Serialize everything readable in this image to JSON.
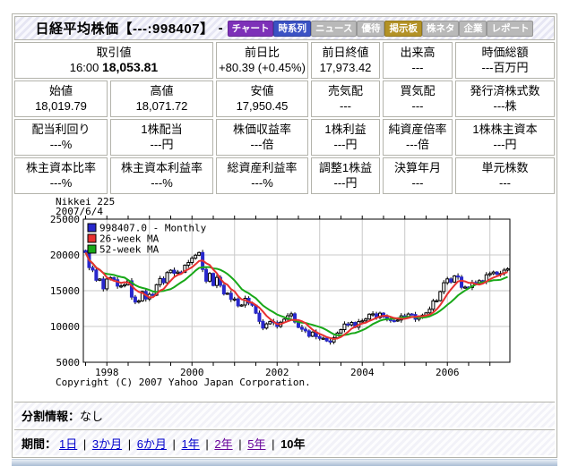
{
  "header": {
    "title": "日経平均株価【---:998407】",
    "title_suffix": "-",
    "buttons": [
      {
        "name": "chart",
        "label": "チャート",
        "color": "#7d31b8"
      },
      {
        "name": "time-series",
        "label": "時系列",
        "color": "#3b52c4"
      },
      {
        "name": "news",
        "label": "ニュース",
        "color": "#b9b9b9"
      },
      {
        "name": "yutai",
        "label": "優待",
        "color": "#b9b9b9"
      },
      {
        "name": "message-board",
        "label": "掲示板",
        "color": "#b39225"
      },
      {
        "name": "kabu-neta",
        "label": "株ネタ",
        "color": "#b9b9b9"
      },
      {
        "name": "company",
        "label": "企業",
        "color": "#b9b9b9"
      },
      {
        "name": "report",
        "label": "レポート",
        "color": "#b9b9b9"
      }
    ]
  },
  "quote": {
    "r1": [
      {
        "label": "取引値",
        "time": "16:00",
        "value": "18,053.81"
      },
      {
        "label": "前日比",
        "value": "+80.39 (+0.45%)"
      },
      {
        "label": "前日終値",
        "value": "17,973.42"
      },
      {
        "label": "出来高",
        "value": "---"
      },
      {
        "label": "時価総額",
        "value": "---百万円"
      }
    ],
    "r2": [
      {
        "label": "始値",
        "value": "18,019.79"
      },
      {
        "label": "高値",
        "value": "18,071.72"
      },
      {
        "label": "安値",
        "value": "17,950.45"
      },
      {
        "label": "売気配",
        "value": "---"
      },
      {
        "label": "買気配",
        "value": "---"
      },
      {
        "label": "発行済株式数",
        "value": "---株"
      }
    ],
    "r3": [
      {
        "label": "配当利回り",
        "value": "---%"
      },
      {
        "label": "1株配当",
        "value": "---円"
      },
      {
        "label": "株価収益率",
        "value": "---倍"
      },
      {
        "label": "1株利益",
        "value": "---円"
      },
      {
        "label": "純資産倍率",
        "value": "---倍"
      },
      {
        "label": "1株株主資本",
        "value": "---円"
      }
    ],
    "r4": [
      {
        "label": "株主資本比率",
        "value": "---%"
      },
      {
        "label": "株主資本利益率",
        "value": "---%"
      },
      {
        "label": "総資産利益率",
        "value": "---%"
      },
      {
        "label": "調整1株益",
        "value": "---円"
      },
      {
        "label": "決算年月",
        "value": "---"
      },
      {
        "label": "単元株数",
        "value": "---"
      }
    ]
  },
  "chart_data": {
    "type": "candlestick",
    "title": "Nikkei 225",
    "date_label": "2007/6/4",
    "copyright": "Copyright (C) 2007 Yahoo Japan Corporation.",
    "ylim": [
      5000,
      25000
    ],
    "yticks": [
      25000,
      20000,
      15000,
      10000,
      5000
    ],
    "xtick_labels": [
      "1998",
      "2000",
      "2002",
      "2004",
      "2006"
    ],
    "xtick_month_index": [
      6,
      30,
      54,
      78,
      102
    ],
    "grid": true,
    "legend_position": "top-left",
    "legend": [
      {
        "label": "998407.0 - Monthly",
        "color": "#2828cc"
      },
      {
        "label": "26-week MA",
        "color": "#e83030"
      },
      {
        "label": "52-week MA",
        "color": "#18a818"
      }
    ],
    "x_start": "1997-07",
    "x_end": "2007-06",
    "first_open": 20605,
    "monthly_close": [
      20331,
      18229,
      17887,
      16459,
      16636,
      15259,
      16628,
      16832,
      16527,
      15641,
      15671,
      15830,
      16379,
      14107,
      13406,
      13565,
      14884,
      13842,
      14499,
      14368,
      15837,
      16702,
      16112,
      17530,
      17861,
      17430,
      17605,
      17582,
      18559,
      18934,
      19540,
      19959,
      20337,
      17974,
      16332,
      17411,
      15727,
      16861,
      15747,
      14540,
      14649,
      13786,
      13844,
      12884,
      12999,
      13934,
      13262,
      12969,
      11861,
      10714,
      9775,
      10366,
      10697,
      10543,
      9998,
      10588,
      11025,
      11493,
      11764,
      10622,
      9878,
      9619,
      9383,
      8640,
      9216,
      8579,
      8340,
      8363,
      7973,
      7831,
      8425,
      9083,
      9563,
      10343,
      10219,
      10559,
      9895,
      10677,
      10784,
      11041,
      11715,
      11762,
      11236,
      11859,
      11326,
      11082,
      10824,
      10771,
      10900,
      11489,
      11387,
      11740,
      11669,
      11009,
      11276,
      11584,
      11900,
      12414,
      13574,
      13606,
      14872,
      16111,
      16649,
      16205,
      17060,
      16906,
      15467,
      15505,
      15457,
      16141,
      16128,
      16399,
      16274,
      17226,
      17383,
      17604,
      17288,
      17400,
      17876,
      18054
    ],
    "ma_windows": {
      "ma26w_months": 6,
      "ma52w_months": 12
    },
    "colors": {
      "up": "#ffffff",
      "down": "#2828cc",
      "wick": "#000000",
      "grid": "#c9c9c9",
      "frame": "#000000"
    }
  },
  "split_info": {
    "label": "分割情報：",
    "value": "なし"
  },
  "period": {
    "label": "期間：",
    "separator": "|",
    "options": [
      {
        "name": "1d",
        "label": "1日",
        "state": "link"
      },
      {
        "name": "3m",
        "label": "3か月",
        "state": "link"
      },
      {
        "name": "6m",
        "label": "6か月",
        "state": "link"
      },
      {
        "name": "1y",
        "label": "1年",
        "state": "link"
      },
      {
        "name": "2y",
        "label": "2年",
        "state": "visited"
      },
      {
        "name": "5y",
        "label": "5年",
        "state": "visited"
      },
      {
        "name": "10y",
        "label": "10年",
        "state": "current"
      }
    ]
  }
}
